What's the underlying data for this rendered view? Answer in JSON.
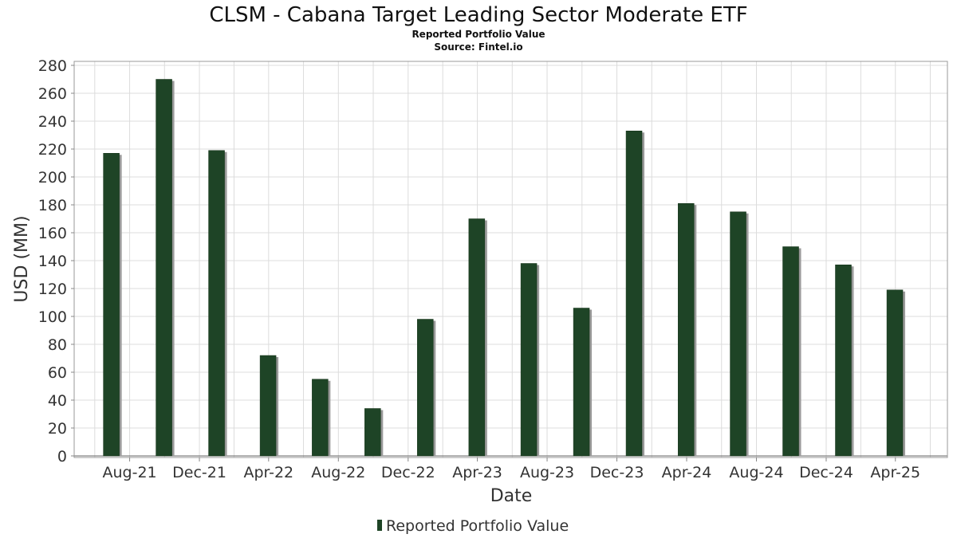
{
  "chart_data": {
    "type": "bar",
    "title": "CLSM - Cabana Target Leading Sector Moderate ETF",
    "subtitle": "Reported Portfolio Value",
    "source": "Source: Fintel.io",
    "xlabel": "Date",
    "ylabel": "USD (MM)",
    "ylim": [
      0,
      280
    ],
    "yticks": [
      0,
      20,
      40,
      60,
      80,
      100,
      120,
      140,
      160,
      180,
      200,
      220,
      240,
      260,
      280
    ],
    "xticks": [
      "Aug-21",
      "Dec-21",
      "Apr-22",
      "Aug-22",
      "Dec-22",
      "Apr-23",
      "Aug-23",
      "Dec-23",
      "Apr-24",
      "Aug-24",
      "Dec-24",
      "Apr-25"
    ],
    "grid": true,
    "legend_position": "bottom",
    "series": [
      {
        "name": "Reported Portfolio Value",
        "color": "#1e4426",
        "dates": [
          "2021-06-30",
          "2021-09-30",
          "2021-12-31",
          "2022-03-31",
          "2022-06-30",
          "2022-09-30",
          "2022-12-31",
          "2023-03-31",
          "2023-06-30",
          "2023-09-30",
          "2023-12-31",
          "2024-03-31",
          "2024-06-30",
          "2024-09-30",
          "2024-12-31",
          "2025-03-31"
        ],
        "values": [
          217,
          270,
          219,
          72,
          55,
          34,
          98,
          170,
          138,
          106,
          233,
          181,
          175,
          150,
          137,
          119
        ]
      }
    ]
  }
}
